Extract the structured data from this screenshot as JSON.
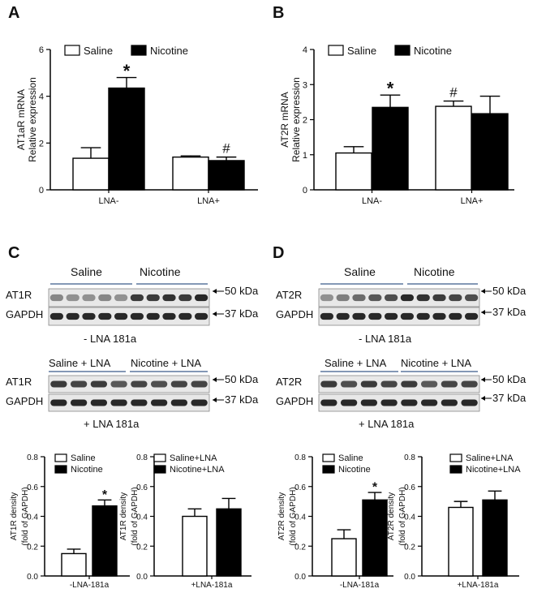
{
  "chart_data": [
    {
      "panel": "A",
      "type": "bar",
      "ylabel": [
        "AT1aR mRNA",
        "Relative expression"
      ],
      "ylim": [
        0,
        6
      ],
      "yticks": [
        0,
        2,
        4,
        6
      ],
      "categories": [
        "LNA-",
        "LNA+"
      ],
      "series": [
        {
          "name": "Saline",
          "color": "#ffffff",
          "values": [
            1.35,
            1.4
          ],
          "errors": [
            0.45,
            0.05
          ]
        },
        {
          "name": "Nicotine",
          "color": "#000000",
          "values": [
            4.35,
            1.25
          ],
          "errors": [
            0.45,
            0.15
          ]
        }
      ],
      "annotations": [
        {
          "series": 1,
          "category": 0,
          "text": "*"
        },
        {
          "series": 1,
          "category": 1,
          "text": "#"
        }
      ]
    },
    {
      "panel": "B",
      "type": "bar",
      "ylabel": [
        "AT2R mRNA",
        "Relative expression"
      ],
      "ylim": [
        0,
        4
      ],
      "yticks": [
        0,
        1,
        2,
        3,
        4
      ],
      "categories": [
        "LNA-",
        "LNA+"
      ],
      "series": [
        {
          "name": "Saline",
          "color": "#ffffff",
          "values": [
            1.05,
            2.38
          ],
          "errors": [
            0.18,
            0.15
          ]
        },
        {
          "name": "Nicotine",
          "color": "#000000",
          "values": [
            2.35,
            2.17
          ],
          "errors": [
            0.35,
            0.5
          ]
        }
      ],
      "annotations": [
        {
          "series": 1,
          "category": 0,
          "text": "*"
        },
        {
          "series": 0,
          "category": 1,
          "text": "#"
        }
      ]
    },
    {
      "panel": "C1",
      "type": "bar",
      "ylabel": [
        "AT1R density",
        "(fold of GAPDH)"
      ],
      "ylim": [
        0,
        0.8
      ],
      "yticks": [
        0.0,
        0.2,
        0.4,
        0.6,
        0.8
      ],
      "categories": [
        "-LNA-181a"
      ],
      "series": [
        {
          "name": "Saline",
          "color": "#ffffff",
          "values": [
            0.15
          ],
          "errors": [
            0.03
          ]
        },
        {
          "name": "Nicotine",
          "color": "#000000",
          "values": [
            0.47
          ],
          "errors": [
            0.04
          ]
        }
      ],
      "annotations": [
        {
          "series": 1,
          "category": 0,
          "text": "*"
        }
      ]
    },
    {
      "panel": "C2",
      "type": "bar",
      "ylabel": [
        "AT1R density",
        "(fold of GAPDH)"
      ],
      "ylim": [
        0,
        0.8
      ],
      "yticks": [
        0.0,
        0.2,
        0.4,
        0.6,
        0.8
      ],
      "categories": [
        "+LNA-181a"
      ],
      "series": [
        {
          "name": "Saline+LNA",
          "color": "#ffffff",
          "values": [
            0.4
          ],
          "errors": [
            0.05
          ]
        },
        {
          "name": "Nicotine+LNA",
          "color": "#000000",
          "values": [
            0.45
          ],
          "errors": [
            0.07
          ]
        }
      ],
      "annotations": []
    },
    {
      "panel": "D1",
      "type": "bar",
      "ylabel": [
        "AT2R density",
        "(fold of GAPDH)"
      ],
      "ylim": [
        0,
        0.8
      ],
      "yticks": [
        0.0,
        0.2,
        0.4,
        0.6,
        0.8
      ],
      "categories": [
        "-LNA-181a"
      ],
      "series": [
        {
          "name": "Saline",
          "color": "#ffffff",
          "values": [
            0.25
          ],
          "errors": [
            0.06
          ]
        },
        {
          "name": "Nicotine",
          "color": "#000000",
          "values": [
            0.51
          ],
          "errors": [
            0.05
          ]
        }
      ],
      "annotations": [
        {
          "series": 1,
          "category": 0,
          "text": "*"
        }
      ]
    },
    {
      "panel": "D2",
      "type": "bar",
      "ylabel": [
        "AT2R density",
        "(fold of GAPDH)"
      ],
      "ylim": [
        0,
        0.8
      ],
      "yticks": [
        0.0,
        0.2,
        0.4,
        0.6,
        0.8
      ],
      "categories": [
        "+LNA-181a"
      ],
      "series": [
        {
          "name": "Saline+LNA",
          "color": "#ffffff",
          "values": [
            0.46
          ],
          "errors": [
            0.04
          ]
        },
        {
          "name": "Nicotine+LNA",
          "color": "#000000",
          "values": [
            0.51
          ],
          "errors": [
            0.06
          ]
        }
      ],
      "annotations": []
    }
  ],
  "blots": {
    "C": {
      "letter": "C",
      "top": {
        "groups": [
          "Saline",
          "Nicotine"
        ],
        "rows": [
          "AT1R",
          "GAPDH"
        ],
        "markers": [
          "50 kDa",
          "37 kDa"
        ],
        "caption": "- LNA 181a"
      },
      "bottom": {
        "groups": [
          "Saline + LNA",
          "Nicotine + LNA"
        ],
        "rows": [
          "AT1R",
          "GAPDH"
        ],
        "markers": [
          "50 kDa",
          "37 kDa"
        ],
        "caption": "+ LNA 181a"
      }
    },
    "D": {
      "letter": "D",
      "top": {
        "groups": [
          "Saline",
          "Nicotine"
        ],
        "rows": [
          "AT2R",
          "GAPDH"
        ],
        "markers": [
          "50 kDa",
          "37 kDa"
        ],
        "caption": "- LNA 181a"
      },
      "bottom": {
        "groups": [
          "Saline + LNA",
          "Nicotine + LNA"
        ],
        "rows": [
          "AT2R",
          "GAPDH"
        ],
        "markers": [
          "50 kDa",
          "37 kDa"
        ],
        "caption": "+ LNA 181a"
      }
    }
  },
  "panel_letters": {
    "a": "A",
    "b": "B"
  },
  "lane_intensities": {
    "C_top_AT1R": [
      0.45,
      0.4,
      0.4,
      0.45,
      0.4,
      0.85,
      0.85,
      0.9,
      0.85,
      0.95
    ],
    "C_top_GAPDH": [
      0.95,
      0.95,
      0.95,
      0.95,
      0.95,
      0.95,
      0.95,
      0.95,
      0.95,
      0.95
    ],
    "C_bot_AT1R": [
      0.85,
      0.8,
      0.85,
      0.7,
      0.8,
      0.75,
      0.8,
      0.8
    ],
    "C_bot_GAPDH": [
      0.95,
      0.95,
      0.95,
      0.95,
      0.95,
      0.95,
      0.95,
      0.95
    ],
    "D_top_AT2R": [
      0.4,
      0.5,
      0.6,
      0.7,
      0.75,
      0.95,
      0.9,
      0.85,
      0.8,
      0.75
    ],
    "D_top_GAPDH": [
      0.95,
      0.95,
      0.95,
      0.95,
      0.95,
      0.95,
      0.95,
      0.95,
      0.95,
      0.95
    ],
    "D_bot_AT2R": [
      0.85,
      0.75,
      0.85,
      0.8,
      0.85,
      0.7,
      0.8,
      0.8
    ],
    "D_bot_GAPDH": [
      0.95,
      0.95,
      0.95,
      0.95,
      0.95,
      0.95,
      0.95,
      0.95
    ]
  }
}
